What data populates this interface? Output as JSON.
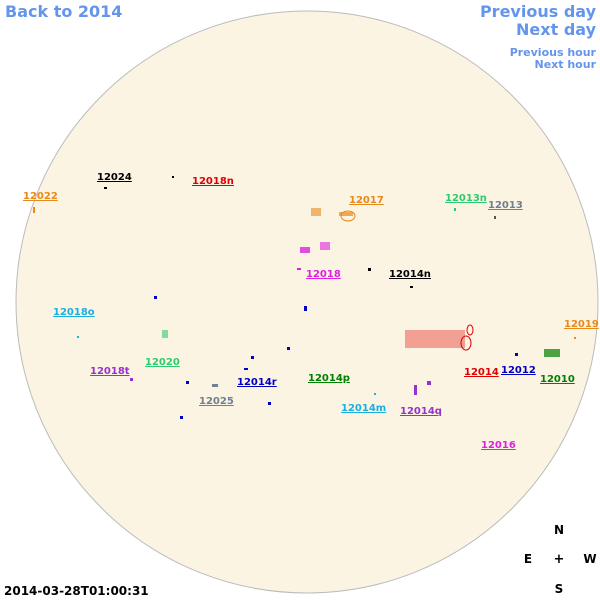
{
  "nav": {
    "back": "Back to 2014",
    "previous_day": "Previous day",
    "next_day": "Next day",
    "previous_hour": "Previous hour",
    "next_hour": "Next hour"
  },
  "regions": [
    {
      "label": "12024",
      "color": "#000000"
    },
    {
      "label": "12018n",
      "color": "#e00000"
    },
    {
      "label": "12022",
      "color": "#e8891a"
    },
    {
      "label": "12017",
      "color": "#e8891a"
    },
    {
      "label": "12013n",
      "color": "#2ecc71"
    },
    {
      "label": "12013",
      "color": "#708090"
    },
    {
      "label": "12018",
      "color": "#e020e0"
    },
    {
      "label": "12014n",
      "color": "#000000"
    },
    {
      "label": "12018o",
      "color": "#1ab0e0"
    },
    {
      "label": "12019",
      "color": "#e8891a"
    },
    {
      "label": "12020",
      "color": "#2ecc71"
    },
    {
      "label": "12018t",
      "color": "#9932cc"
    },
    {
      "label": "12014",
      "color": "#e00000"
    },
    {
      "label": "12012",
      "color": "#0000c0"
    },
    {
      "label": "12010",
      "color": "#008000"
    },
    {
      "label": "12014p",
      "color": "#008000"
    },
    {
      "label": "12014r",
      "color": "#0000c0"
    },
    {
      "label": "12025",
      "color": "#708090"
    },
    {
      "label": "12014m",
      "color": "#1ab0e0"
    },
    {
      "label": "12014q",
      "color": "#9932cc"
    },
    {
      "label": "12016",
      "color": "#e020e0"
    }
  ],
  "compass": {
    "north": "N",
    "east": "E",
    "center": "+",
    "west": "W",
    "south": "S"
  },
  "timestamp": "2014-03-28T01:00:31"
}
